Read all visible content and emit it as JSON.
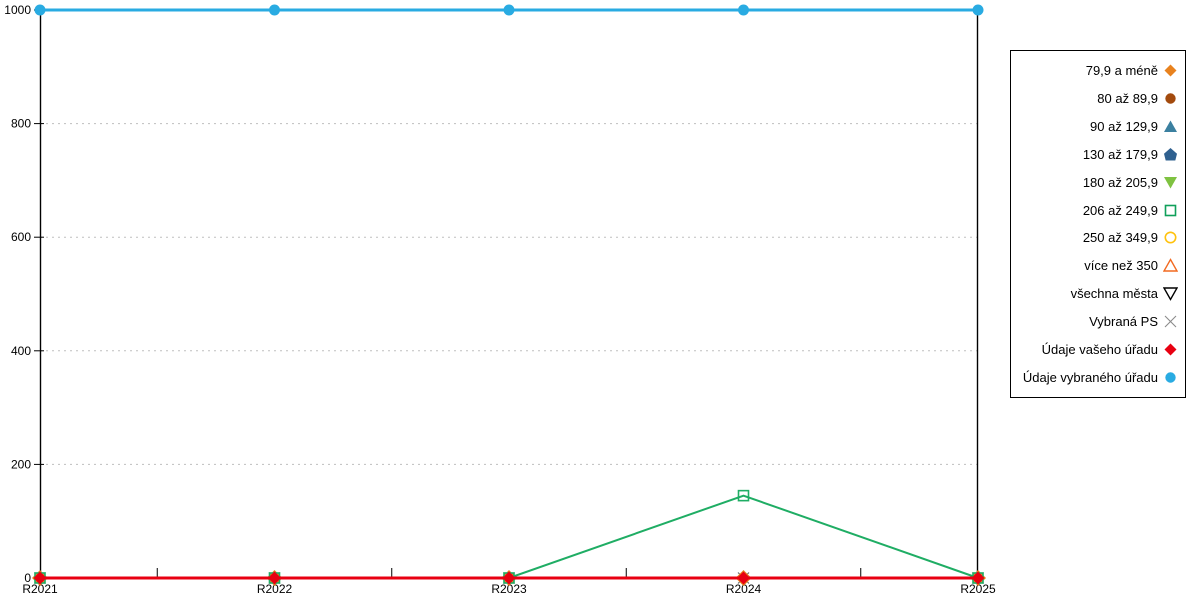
{
  "chart_data": {
    "type": "line",
    "title": "",
    "xlabel": "",
    "ylabel": "",
    "categories": [
      "R2021",
      "R2022",
      "R2023",
      "R2024",
      "R2025"
    ],
    "ylim": [
      0,
      1000
    ],
    "yticks": [
      0,
      200,
      400,
      600,
      800,
      1000
    ],
    "grid": "dotted-horizontal",
    "legend_position": "right-outside-boxed",
    "series": [
      {
        "name": "Vybraná PS",
        "marker": "x",
        "filled": false,
        "color": "#6E6E6E",
        "line": false,
        "values": [
          0,
          0,
          0,
          0,
          0
        ]
      },
      {
        "name": "79,9 a méně",
        "marker": "diamond",
        "filled": true,
        "color": "#E8821E",
        "line": false,
        "values": [
          0,
          0,
          0,
          0,
          0
        ]
      },
      {
        "name": "206 až 249,9",
        "marker": "square",
        "filled": false,
        "color": "#1FAD64",
        "line": true,
        "values": [
          0,
          0,
          0,
          145,
          0
        ]
      },
      {
        "name": "Údaje vašeho úřadu",
        "marker": "diamond",
        "filled": true,
        "color": "#E80011",
        "line": true,
        "values": [
          0,
          0,
          0,
          0,
          0
        ]
      },
      {
        "name": "Údaje vybraného úřadu",
        "marker": "circle",
        "filled": true,
        "color": "#29ABE2",
        "line": true,
        "values": [
          1000,
          1000,
          1000,
          1000,
          1000
        ]
      }
    ]
  },
  "axis": {
    "y_tick_labels": [
      "0",
      "200",
      "400",
      "600",
      "800",
      "1000"
    ],
    "x_tick_labels": [
      "R2021",
      "R2022",
      "R2023",
      "R2024",
      "R2025"
    ]
  },
  "legend": {
    "items": [
      {
        "label": "79,9 a méně",
        "marker": "diamond",
        "filled": true,
        "color": "#E8821E"
      },
      {
        "label": "80 až 89,9",
        "marker": "circle",
        "filled": true,
        "color": "#A34A0D"
      },
      {
        "label": "90 až 129,9",
        "marker": "triangle-up",
        "filled": true,
        "color": "#3B80A0"
      },
      {
        "label": "130 až 179,9",
        "marker": "pentagon",
        "filled": true,
        "color": "#2F608F"
      },
      {
        "label": "180 až 205,9",
        "marker": "triangle-down",
        "filled": true,
        "color": "#7FC241"
      },
      {
        "label": "206 až 249,9",
        "marker": "square",
        "filled": false,
        "color": "#10A05A"
      },
      {
        "label": "250 až 349,9",
        "marker": "circle",
        "filled": false,
        "color": "#FFC20E"
      },
      {
        "label": "více než 350",
        "marker": "triangle-up",
        "filled": false,
        "color": "#F26A21"
      },
      {
        "label": "všechna města",
        "marker": "triangle-down",
        "filled": false,
        "color": "#000000"
      },
      {
        "label": "Vybraná PS",
        "marker": "x",
        "filled": false,
        "color": "#8A8A8A"
      },
      {
        "label": "Údaje vašeho úřadu",
        "marker": "diamond",
        "filled": true,
        "color": "#E80011"
      },
      {
        "label": "Údaje vybraného úřadu",
        "marker": "circle",
        "filled": true,
        "color": "#29ABE2"
      }
    ]
  },
  "colors": {
    "axis": "#000000",
    "gridline": "#BFBFBF",
    "background": "#FFFFFF"
  }
}
